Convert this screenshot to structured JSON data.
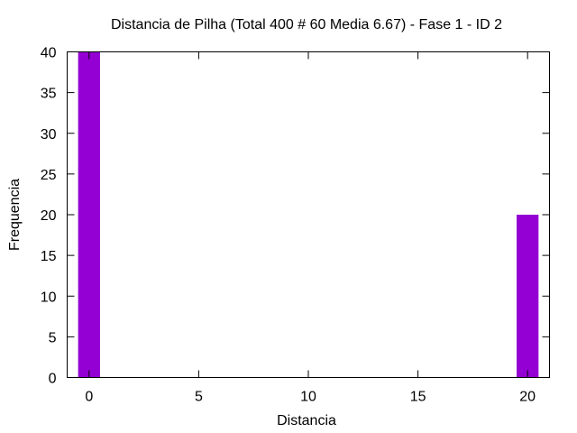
{
  "chart_data": {
    "type": "bar",
    "title": "Distancia de Pilha (Total 400 # 60 Media 6.67) - Fase  1 - ID 2",
    "xlabel": "Distancia",
    "ylabel": "Frequencia",
    "x": [
      0,
      20
    ],
    "values": [
      40,
      20
    ],
    "bar_width": 1,
    "xlim": [
      -1,
      21
    ],
    "ylim": [
      0,
      40
    ],
    "xticks": [
      0,
      5,
      10,
      15,
      20
    ],
    "yticks": [
      0,
      5,
      10,
      15,
      20,
      25,
      30,
      35,
      40
    ],
    "bar_color": "#9400D3",
    "grid": false,
    "legend": "none"
  }
}
